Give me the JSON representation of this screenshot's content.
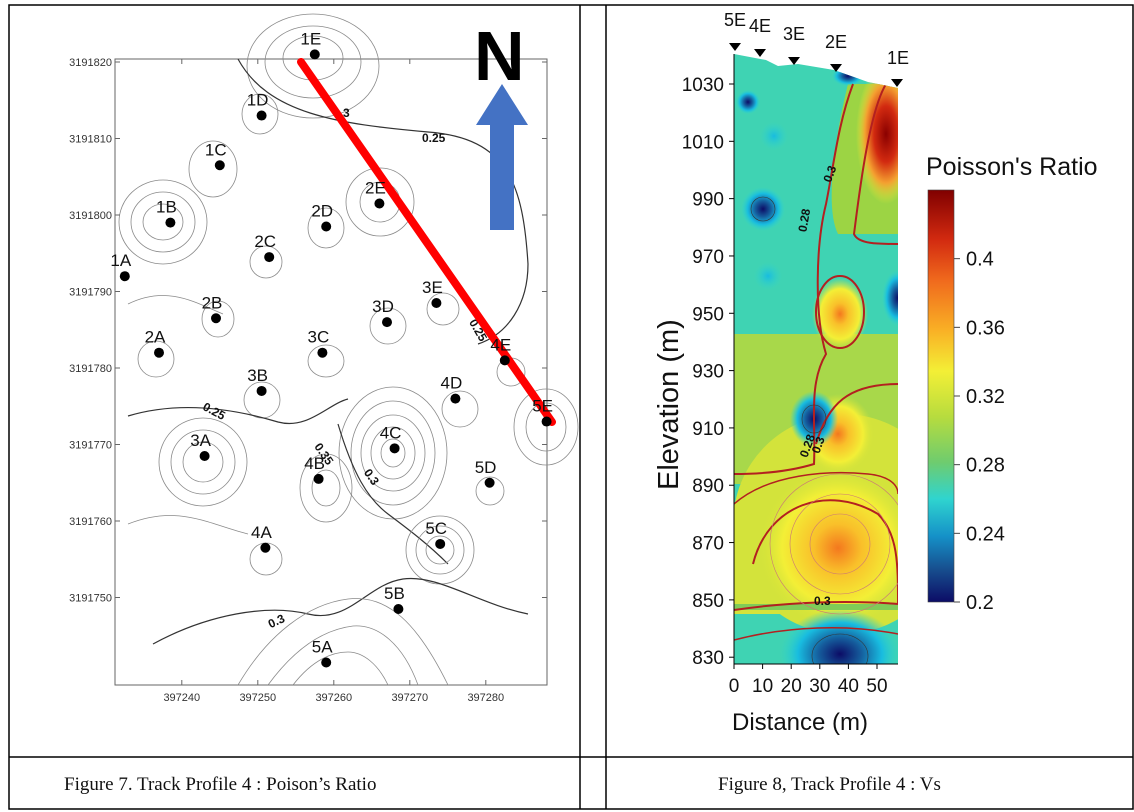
{
  "left_figure": {
    "north_label": "N",
    "y_ticks": [
      "3191820",
      "3191810",
      "3191800",
      "3191790",
      "3191780",
      "3191770",
      "3191760",
      "3191750"
    ],
    "x_ticks": [
      "397240",
      "397250",
      "397260",
      "397270",
      "397280"
    ],
    "contour_labels": [
      "0.3",
      "0.25",
      "0.25",
      "0.35",
      "0.3",
      "0.3",
      "0.25"
    ],
    "stations": [
      {
        "label": "1E",
        "x": 397257.5,
        "y": 3191821
      },
      {
        "label": "1D",
        "x": 397250.5,
        "y": 3191813
      },
      {
        "label": "1C",
        "x": 397245,
        "y": 3191806.5
      },
      {
        "label": "1B",
        "x": 397238.5,
        "y": 3191799
      },
      {
        "label": "1A",
        "x": 397232.5,
        "y": 3191792
      },
      {
        "label": "2E",
        "x": 397266,
        "y": 3191801.5
      },
      {
        "label": "2D",
        "x": 397259,
        "y": 3191798.5
      },
      {
        "label": "2C",
        "x": 397251.5,
        "y": 3191794.5
      },
      {
        "label": "2B",
        "x": 397244.5,
        "y": 3191786.5
      },
      {
        "label": "2A",
        "x": 397237,
        "y": 3191782
      },
      {
        "label": "3E",
        "x": 397273.5,
        "y": 3191788.5
      },
      {
        "label": "3D",
        "x": 397267,
        "y": 3191786
      },
      {
        "label": "3C",
        "x": 397258.5,
        "y": 3191782
      },
      {
        "label": "3B",
        "x": 397250.5,
        "y": 3191777
      },
      {
        "label": "3A",
        "x": 397243,
        "y": 3191768.5
      },
      {
        "label": "4E",
        "x": 397282.5,
        "y": 3191781
      },
      {
        "label": "4D",
        "x": 397276,
        "y": 3191776
      },
      {
        "label": "4C",
        "x": 397268,
        "y": 3191769.5
      },
      {
        "label": "4B",
        "x": 397258,
        "y": 3191765.5
      },
      {
        "label": "4A",
        "x": 397251,
        "y": 3191756.5
      },
      {
        "label": "5E",
        "x": 397288,
        "y": 3191773
      },
      {
        "label": "5D",
        "x": 397280.5,
        "y": 3191765
      },
      {
        "label": "5C",
        "x": 397274,
        "y": 3191757
      },
      {
        "label": "5B",
        "x": 397268.5,
        "y": 3191748.5
      },
      {
        "label": "5A",
        "x": 397259,
        "y": 3191741.5
      }
    ]
  },
  "right_figure": {
    "station_labels": [
      "5E",
      "4E",
      "3E",
      "2E",
      "1E"
    ],
    "y_ticks": [
      "1030",
      "1010",
      "990",
      "970",
      "950",
      "930",
      "910",
      "890",
      "870",
      "850",
      "830"
    ],
    "x_ticks": [
      "0",
      "10",
      "20",
      "30",
      "40",
      "50"
    ],
    "ylabel": "Elevation (m)",
    "xlabel": "Distance (m)",
    "contour_labels": [
      "0.3",
      "0.28",
      "0.28",
      "0.3",
      "0.3"
    ],
    "legend": {
      "title": "Poisson's Ratio",
      "ticks": [
        "0.4",
        "0.36",
        "0.32",
        "0.28",
        "0.24",
        "0.2"
      ],
      "colors": [
        "#800000",
        "#c01b0c",
        "#e8401a",
        "#f4781e",
        "#f9a825",
        "#fbd52a",
        "#f3ef36",
        "#d3e33b",
        "#a6d640",
        "#80c94c",
        "#56cb8e",
        "#2fd4cf",
        "#18bce0",
        "#1492c4",
        "#155c9c",
        "#1a2f78",
        "#0c0c66"
      ]
    }
  },
  "captions": {
    "left": "Figure 7. Track Profile 4 :  Poison’s Ratio",
    "right": "Figure 8, Track Profile 4 : Vs"
  }
}
